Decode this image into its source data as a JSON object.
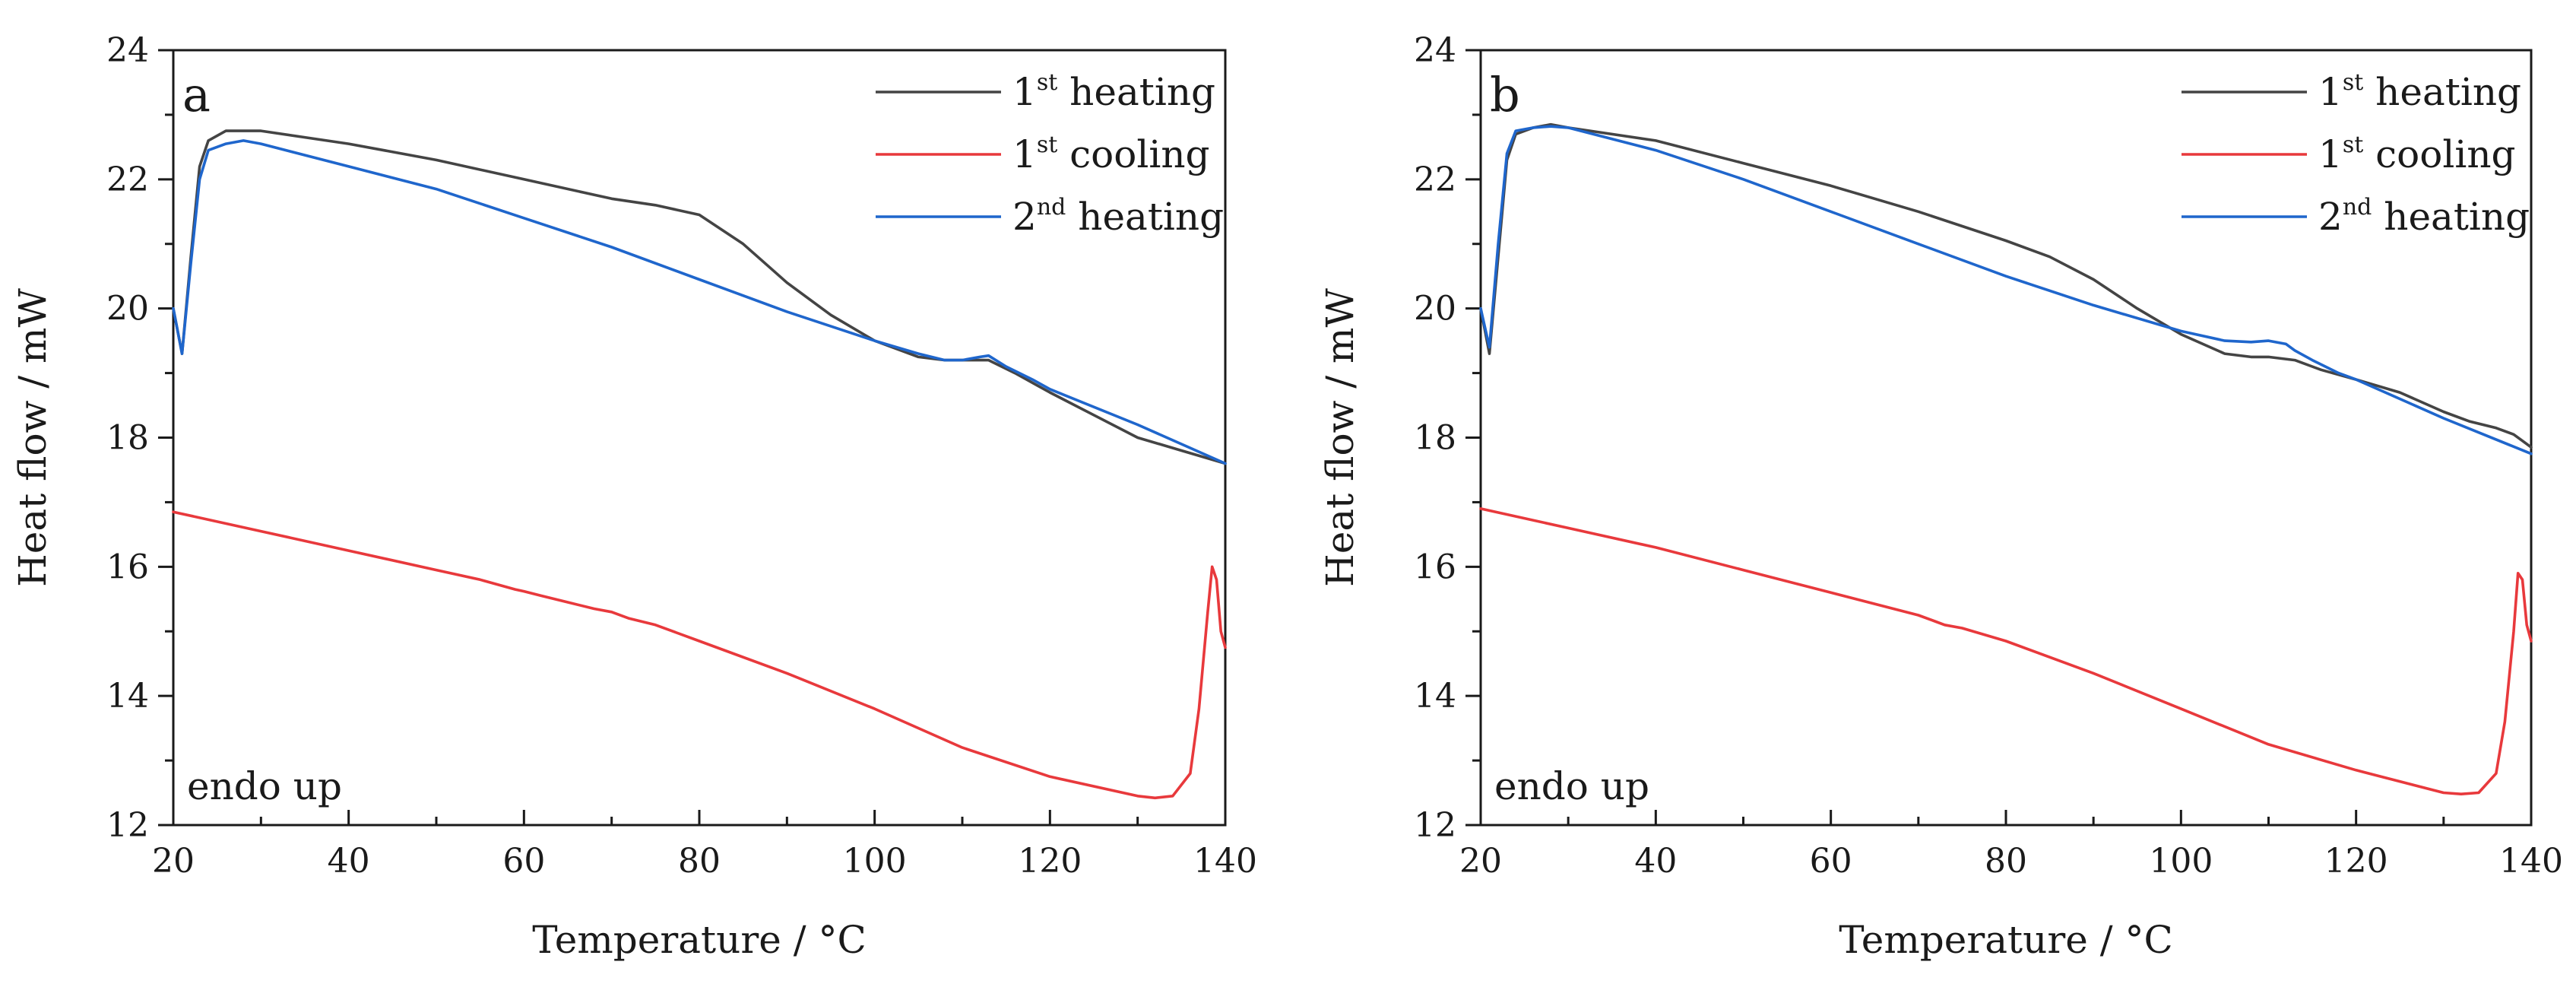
{
  "chart_data": [
    {
      "type": "line",
      "panel_label": "a",
      "xlabel": "Temperature / °C",
      "ylabel": "Heat flow / mW",
      "xlim": [
        20,
        140
      ],
      "ylim": [
        12,
        24
      ],
      "xticks": [
        20,
        40,
        60,
        80,
        100,
        120,
        140
      ],
      "yticks": [
        12,
        14,
        16,
        18,
        20,
        22,
        24
      ],
      "annotation": "endo up",
      "grid": false,
      "legend_position": "top-right",
      "series": [
        {
          "name_main": "1",
          "name_sup": "st",
          "name_rest": " heating",
          "color": "#444444",
          "x": [
            20,
            21,
            22,
            23,
            24,
            26,
            28,
            30,
            35,
            40,
            50,
            60,
            70,
            75,
            80,
            85,
            90,
            95,
            100,
            105,
            108,
            110,
            113,
            116,
            120,
            125,
            130,
            135,
            140
          ],
          "y": [
            20.0,
            19.3,
            20.8,
            22.2,
            22.6,
            22.75,
            22.75,
            22.75,
            22.65,
            22.55,
            22.3,
            22.0,
            21.7,
            21.6,
            21.45,
            21.0,
            20.4,
            19.9,
            19.5,
            19.25,
            19.2,
            19.2,
            19.2,
            19.0,
            18.7,
            18.35,
            18.0,
            17.8,
            17.6
          ]
        },
        {
          "name_main": "1",
          "name_sup": "st",
          "name_rest": " cooling",
          "color": "#e8393c",
          "x": [
            20,
            30,
            40,
            50,
            55,
            59,
            60,
            62,
            65,
            68,
            70,
            72,
            75,
            80,
            90,
            100,
            110,
            120,
            130,
            132,
            134,
            136,
            137,
            138,
            138.5,
            139,
            139.5,
            140
          ],
          "y": [
            16.85,
            16.55,
            16.25,
            15.95,
            15.8,
            15.65,
            15.62,
            15.55,
            15.45,
            15.35,
            15.3,
            15.2,
            15.1,
            14.85,
            14.35,
            13.8,
            13.2,
            12.75,
            12.45,
            12.42,
            12.45,
            12.8,
            13.8,
            15.3,
            16.0,
            15.8,
            15.0,
            14.75
          ]
        },
        {
          "name_main": "2",
          "name_sup": "nd",
          "name_rest": " heating",
          "color": "#1f66cc",
          "x": [
            20,
            21,
            22,
            23,
            24,
            26,
            28,
            30,
            40,
            50,
            60,
            70,
            80,
            90,
            100,
            105,
            108,
            110,
            112,
            113,
            115,
            118,
            120,
            130,
            140
          ],
          "y": [
            20.0,
            19.3,
            20.7,
            22.0,
            22.45,
            22.55,
            22.6,
            22.55,
            22.2,
            21.85,
            21.4,
            20.95,
            20.45,
            19.95,
            19.5,
            19.3,
            19.2,
            19.2,
            19.25,
            19.27,
            19.1,
            18.9,
            18.75,
            18.2,
            17.6
          ]
        }
      ]
    },
    {
      "type": "line",
      "panel_label": "b",
      "xlabel": "Temperature / °C",
      "ylabel": "Heat flow / mW",
      "xlim": [
        20,
        140
      ],
      "ylim": [
        12,
        24
      ],
      "xticks": [
        20,
        40,
        60,
        80,
        100,
        120,
        140
      ],
      "yticks": [
        12,
        14,
        16,
        18,
        20,
        22,
        24
      ],
      "annotation": "endo up",
      "grid": false,
      "legend_position": "top-right",
      "series": [
        {
          "name_main": "1",
          "name_sup": "st",
          "name_rest": " heating",
          "color": "#444444",
          "x": [
            20,
            21,
            22,
            23,
            24,
            26,
            28,
            30,
            40,
            50,
            60,
            70,
            80,
            85,
            90,
            95,
            100,
            105,
            108,
            110,
            113,
            116,
            120,
            125,
            130,
            133,
            136,
            138,
            139,
            140
          ],
          "y": [
            20.0,
            19.3,
            20.8,
            22.3,
            22.7,
            22.8,
            22.85,
            22.8,
            22.6,
            22.25,
            21.9,
            21.5,
            21.05,
            20.8,
            20.45,
            20.0,
            19.6,
            19.3,
            19.25,
            19.25,
            19.2,
            19.05,
            18.9,
            18.7,
            18.4,
            18.25,
            18.15,
            18.05,
            17.95,
            17.85
          ]
        },
        {
          "name_main": "1",
          "name_sup": "st",
          "name_rest": " cooling",
          "color": "#e8393c",
          "x": [
            20,
            30,
            40,
            50,
            60,
            70,
            72,
            73,
            75,
            80,
            90,
            100,
            110,
            120,
            130,
            132,
            134,
            136,
            137,
            138,
            138.5,
            139,
            139.5,
            140
          ],
          "y": [
            16.9,
            16.6,
            16.3,
            15.95,
            15.6,
            15.25,
            15.15,
            15.1,
            15.05,
            14.85,
            14.35,
            13.8,
            13.25,
            12.85,
            12.5,
            12.48,
            12.5,
            12.8,
            13.6,
            15.0,
            15.9,
            15.8,
            15.1,
            14.85
          ]
        },
        {
          "name_main": "2",
          "name_sup": "nd",
          "name_rest": " heating",
          "color": "#1f66cc",
          "x": [
            20,
            21,
            22,
            23,
            24,
            26,
            28,
            30,
            40,
            50,
            60,
            70,
            80,
            90,
            100,
            105,
            108,
            110,
            112,
            113,
            115,
            118,
            120,
            130,
            140
          ],
          "y": [
            20.0,
            19.4,
            21.0,
            22.4,
            22.75,
            22.8,
            22.82,
            22.8,
            22.45,
            22.0,
            21.5,
            21.0,
            20.5,
            20.05,
            19.65,
            19.5,
            19.48,
            19.5,
            19.45,
            19.35,
            19.2,
            19.0,
            18.9,
            18.3,
            17.75
          ]
        }
      ]
    }
  ]
}
